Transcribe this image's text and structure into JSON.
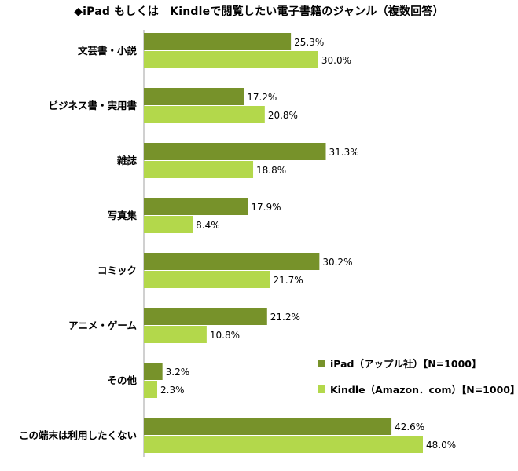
{
  "chart_data": {
    "type": "bar",
    "orientation": "horizontal",
    "title": "◆iPad もしくは　Kindleで閲覧したい電子書籍のジャンル（複数回答）",
    "categories": [
      "文芸書・小説",
      "ビジネス書・実用書",
      "雑誌",
      "写真集",
      "コミック",
      "アニメ・ゲーム",
      "その他",
      "この端末は利用したくない"
    ],
    "series": [
      {
        "name": "iPad（アップル社）【N=1000】",
        "color": "#77922a",
        "values": [
          25.3,
          17.2,
          31.3,
          17.9,
          30.2,
          21.2,
          3.2,
          42.6
        ]
      },
      {
        "name": "Kindle（Amazon．com）【N=1000】",
        "color": "#b3d84b",
        "values": [
          30.0,
          20.8,
          18.8,
          8.4,
          21.7,
          10.8,
          2.3,
          48.0
        ]
      }
    ],
    "value_suffix": "%",
    "xlim": [
      0,
      48.0
    ],
    "grid": false,
    "legend_position": "bottom-right"
  }
}
